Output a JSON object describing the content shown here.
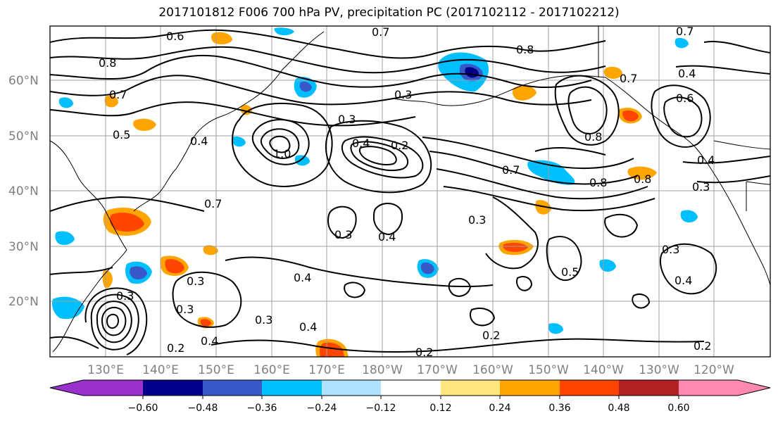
{
  "title": "2017101812 F006 700 hPa PV, precipitation PC (2017102112 - 2017102212)",
  "map": {
    "lon_ticks": [
      "130°E",
      "140°E",
      "150°E",
      "160°E",
      "170°E",
      "180°W",
      "170°W",
      "160°W",
      "150°W",
      "140°W",
      "130°W",
      "120°W"
    ],
    "lat_ticks": [
      "60°N",
      "50°N",
      "40°N",
      "30°N",
      "20°N"
    ],
    "contour_labels": [
      "0.6",
      "0.7",
      "0.8",
      "0.7",
      "0.8",
      "0.4",
      "0.7",
      "0.4",
      "0.7",
      "0.5",
      "0.4",
      "1.0",
      "0.2",
      "0.4",
      "0.6",
      "0.7",
      "0.8",
      "0.8",
      "0.7",
      "0.8",
      "0.3",
      "0.3",
      "0.3",
      "0.3",
      "0.4",
      "0.3",
      "0.4",
      "0.3",
      "0.5",
      "0.3",
      "0.3",
      "0.3",
      "0.4",
      "0.4",
      "0.3",
      "0.2",
      "0.2",
      "0.2",
      "0.2",
      "0.4"
    ]
  },
  "colorbar": {
    "colors": [
      "#9932cc",
      "#00008b",
      "#3858c8",
      "#00bfff",
      "#b0e2ff",
      "#ffffff",
      "#ffe680",
      "#ffa500",
      "#ff4500",
      "#b22222",
      "#ff88b0"
    ],
    "ticks": [
      "−0.60",
      "−0.48",
      "−0.36",
      "−0.24",
      "−0.12",
      "0.12",
      "0.24",
      "0.36",
      "0.48",
      "0.60"
    ]
  },
  "shading_colors": {
    "neg_light": "#00bfff",
    "neg_mid": "#3858c8",
    "neg_dark": "#00008b",
    "pos_light": "#ffa500",
    "pos_mid": "#ff4500",
    "pos_dark": "#b22222",
    "pos_pale": "#ffe680"
  }
}
